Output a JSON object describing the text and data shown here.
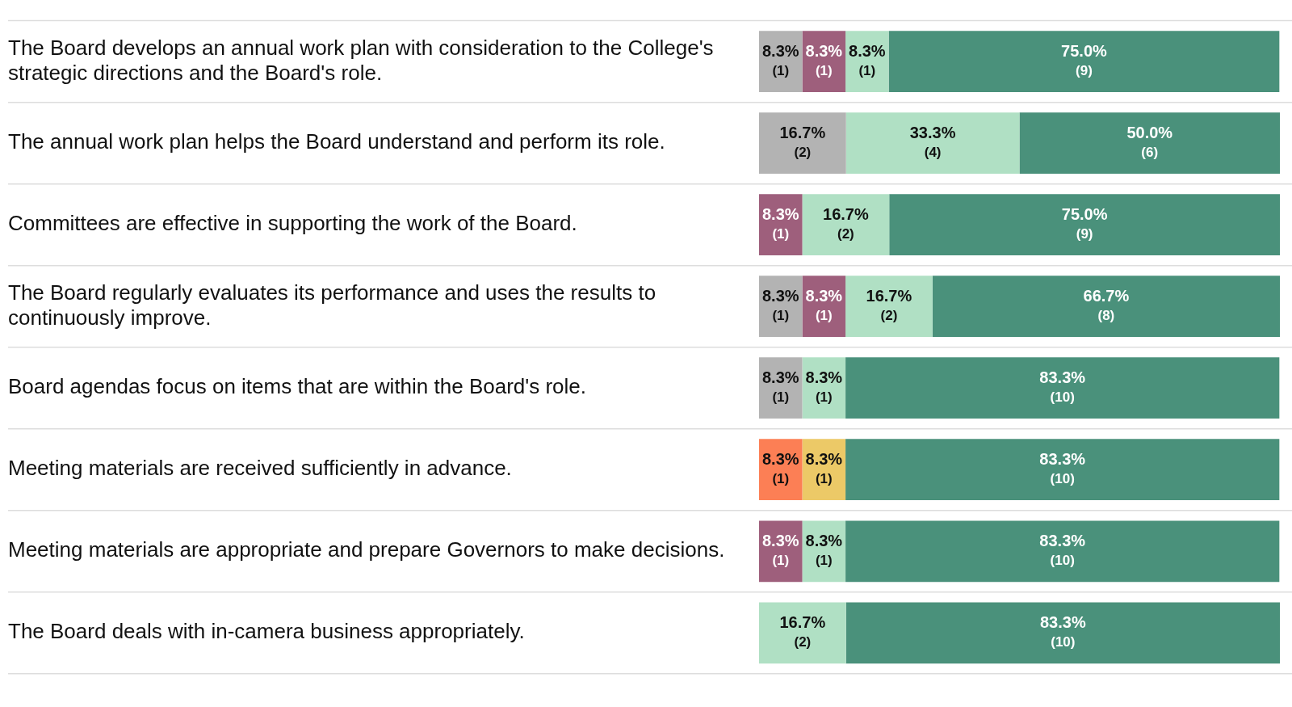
{
  "chart_data": {
    "type": "bar",
    "orientation": "horizontal",
    "stacked": true,
    "grid": "y",
    "legend": false,
    "tick_labels": "y",
    "xlim": [
      0,
      100
    ],
    "categories": [
      "The Board develops an annual work plan with consideration to the College's strategic directions and the Board's role.",
      "The annual work plan helps the Board understand and perform its role.",
      "Committees are effective in supporting the work of the Board.",
      "The Board regularly evaluates its performance and uses the results to continuously improve.",
      "Board agendas focus on items that are within the Board's role.",
      "Meeting materials are received sufficiently in advance.",
      "Meeting materials are appropriate and prepare Governors to make decisions.",
      "The Board deals with in-camera business appropriately."
    ],
    "series": [
      {
        "color": "#b3b3b3",
        "values": [
          8.3,
          16.7,
          null,
          8.3,
          8.3,
          null,
          null,
          null
        ],
        "value_labels": [
          "8.3%\n(1)",
          "16.7%\n(2)",
          null,
          "8.3%\n(1)",
          "8.3%\n(1)",
          null,
          null,
          null
        ]
      },
      {
        "color": "#fc7f55",
        "values": [
          null,
          null,
          null,
          null,
          null,
          8.3,
          null,
          null
        ],
        "value_labels": [
          null,
          null,
          null,
          null,
          null,
          "8.3%\n(1)",
          null,
          null
        ]
      },
      {
        "color": "#ecc967",
        "values": [
          null,
          null,
          null,
          null,
          null,
          8.3,
          null,
          null
        ],
        "value_labels": [
          null,
          null,
          null,
          null,
          null,
          "8.3%\n(1)",
          null,
          null
        ]
      },
      {
        "color": "#9e5f7c",
        "values": [
          8.3,
          null,
          8.3,
          8.3,
          null,
          null,
          8.3,
          null
        ],
        "value_labels": [
          "8.3%\n(1)",
          null,
          "8.3%\n(1)",
          "8.3%\n(1)",
          null,
          null,
          "8.3%\n(1)",
          null
        ]
      },
      {
        "color": "#b0e0c4",
        "values": [
          8.3,
          33.3,
          16.7,
          16.7,
          8.3,
          null,
          8.3,
          16.7
        ],
        "value_labels": [
          "8.3%\n(1)",
          "33.3%\n(4)",
          "16.7%\n(2)",
          "16.7%\n(2)",
          "8.3%\n(1)",
          null,
          "8.3%\n(1)",
          "16.7%\n(2)"
        ]
      },
      {
        "color": "#4a917b",
        "values": [
          75.0,
          50.0,
          75.0,
          66.7,
          83.3,
          83.3,
          83.3,
          83.3
        ],
        "value_labels": [
          "75.0%\n(9)",
          "50.0%\n(6)",
          "75.0%\n(9)",
          "66.7%\n(8)",
          "83.3%\n(10)",
          "83.3%\n(10)",
          "83.3%\n(10)",
          "83.3%\n(10)"
        ]
      }
    ]
  }
}
